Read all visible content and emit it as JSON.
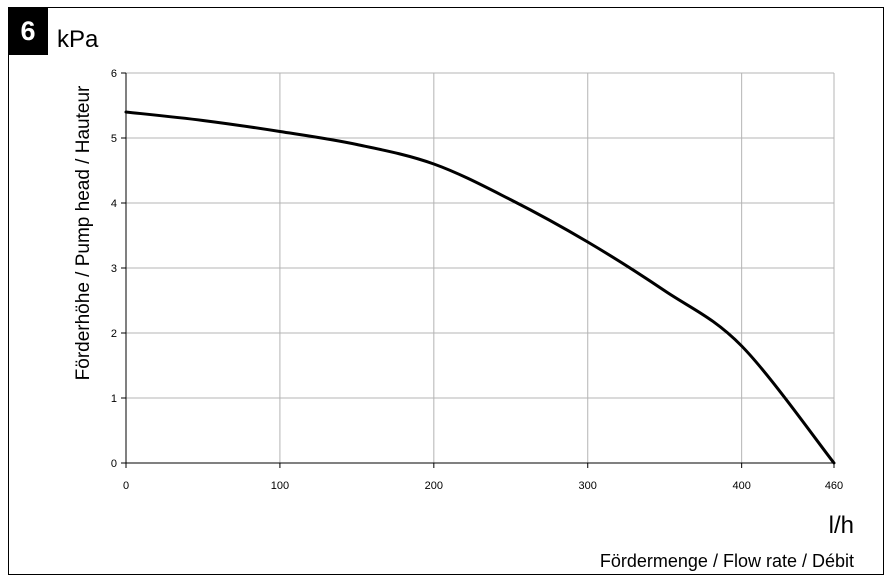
{
  "badge": "6",
  "chart_data": {
    "type": "line",
    "title": "",
    "y_unit": "kPa",
    "x_unit": "l/h",
    "xlabel": "Fördermenge / Flow rate / Débit",
    "ylabel": "Förderhöhe / Pump head / Hauteur",
    "xlim": [
      0,
      460
    ],
    "ylim": [
      0,
      6
    ],
    "x_ticks": [
      0,
      100,
      200,
      300,
      400,
      460
    ],
    "y_ticks": [
      0,
      1,
      2,
      3,
      4,
      5,
      6
    ],
    "grid": true,
    "series": [
      {
        "x": [
          0,
          50,
          100,
          150,
          200,
          250,
          300,
          350,
          400,
          460
        ],
        "y": [
          5.4,
          5.27,
          5.1,
          4.9,
          4.6,
          4.05,
          3.4,
          2.65,
          1.8,
          0
        ]
      }
    ]
  }
}
